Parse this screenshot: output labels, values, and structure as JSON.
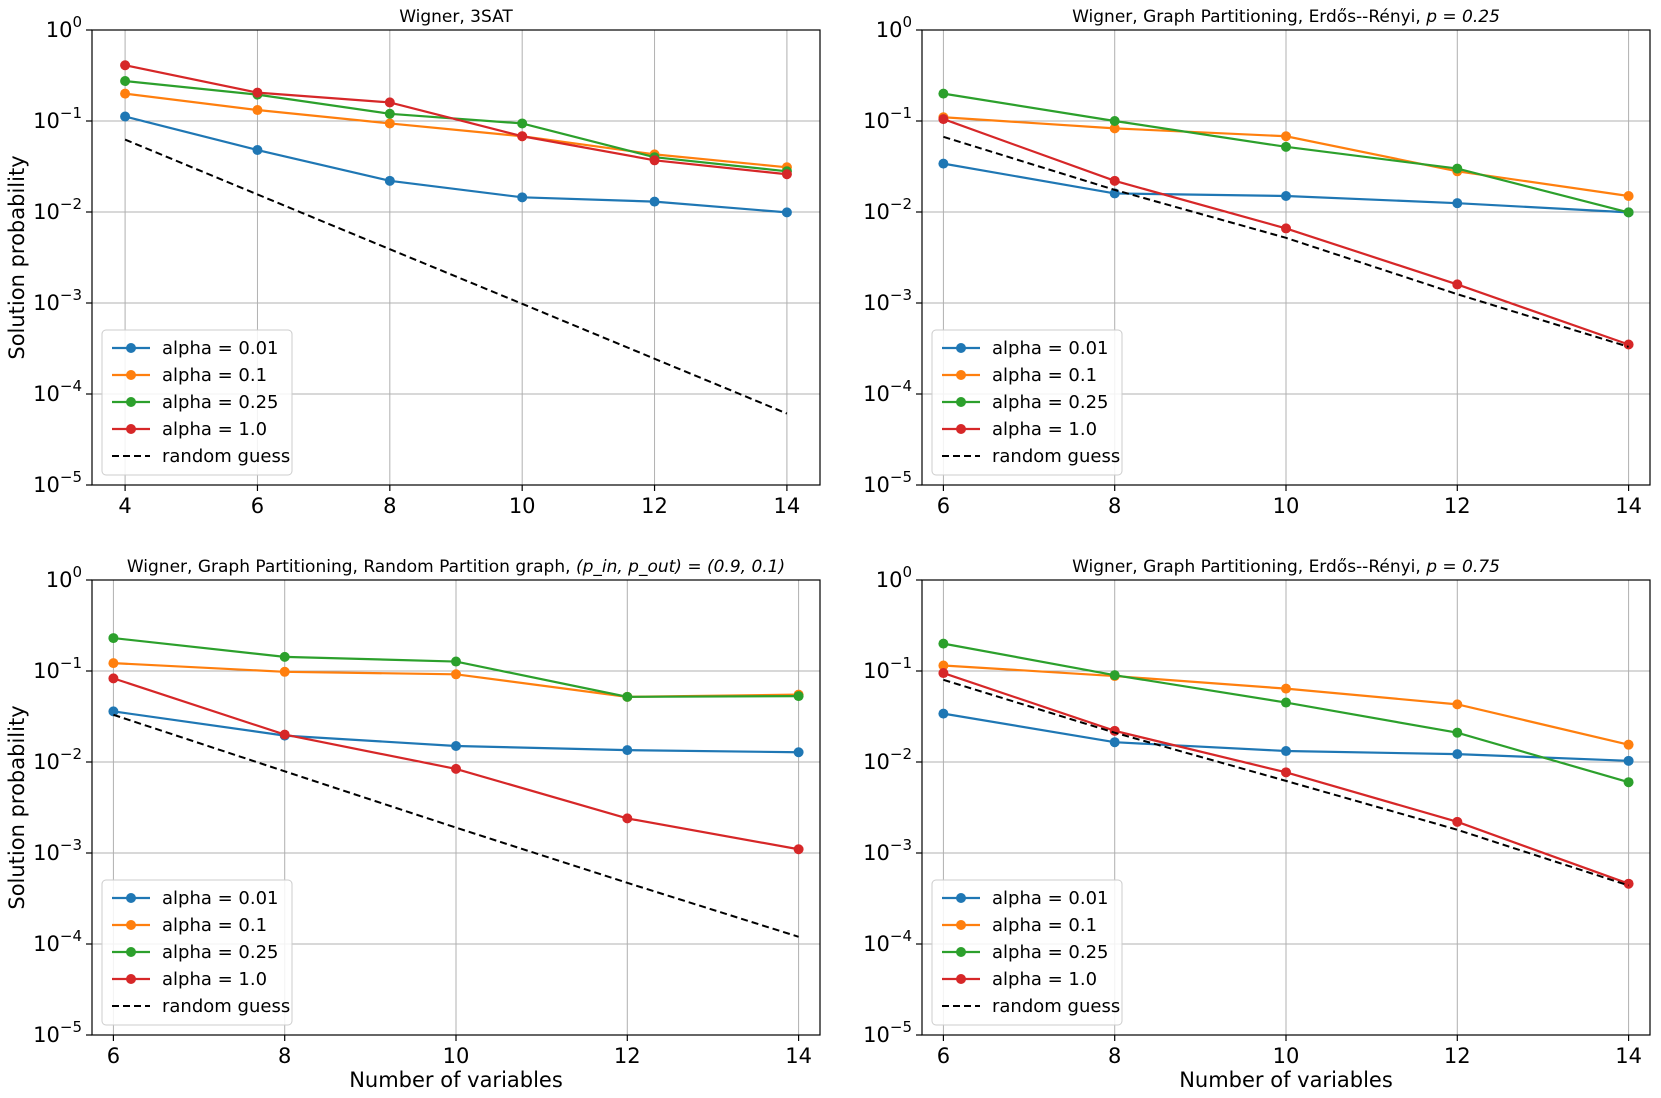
{
  "chart_data": [
    {
      "type": "line",
      "title": "Wigner, 3SAT",
      "xlabel": "",
      "ylabel": "Solution probability",
      "yscale": "log",
      "ylim": [
        1e-05,
        1
      ],
      "xlim": [
        3.5,
        14.5
      ],
      "x": [
        4,
        6,
        8,
        10,
        12,
        14
      ],
      "xticks": [
        "4",
        "6",
        "8",
        "10",
        "12",
        "14"
      ],
      "yticks": [
        "0",
        "-1",
        "-2",
        "-3",
        "-4",
        "-5"
      ],
      "legend_position": "lower-left",
      "series": [
        {
          "name": "alpha = 0.01",
          "color": "#1f77b4",
          "style": "solid-marker",
          "values": [
            0.112,
            0.048,
            0.022,
            0.0145,
            0.013,
            0.0099
          ]
        },
        {
          "name": "alpha = 0.1",
          "color": "#ff7f0e",
          "style": "solid-marker",
          "values": [
            0.2,
            0.132,
            0.094,
            0.068,
            0.043,
            0.031
          ]
        },
        {
          "name": "alpha = 0.25",
          "color": "#2ca02c",
          "style": "solid-marker",
          "values": [
            0.275,
            0.195,
            0.12,
            0.094,
            0.04,
            0.028
          ]
        },
        {
          "name": "alpha = 1.0",
          "color": "#d62728",
          "style": "solid-marker",
          "values": [
            0.41,
            0.205,
            0.16,
            0.068,
            0.037,
            0.026
          ]
        },
        {
          "name": "random guess",
          "color": "#000000",
          "style": "dashed",
          "values": [
            0.0625,
            0.0156,
            0.0039,
            0.00098,
            0.000244,
            6.1e-05
          ]
        }
      ]
    },
    {
      "type": "line",
      "title": "Wigner, Graph Partitioning, Erdős--Rényi, ",
      "title_math": "p = 0.25",
      "xlabel": "",
      "ylabel": "",
      "yscale": "log",
      "ylim": [
        1e-05,
        1
      ],
      "xlim": [
        5.75,
        14.25
      ],
      "x": [
        6,
        8,
        10,
        12,
        14
      ],
      "xticks": [
        "6",
        "8",
        "10",
        "12",
        "14"
      ],
      "yticks": [
        "0",
        "-1",
        "-2",
        "-3",
        "-4",
        "-5"
      ],
      "legend_position": "lower-left",
      "series": [
        {
          "name": "alpha = 0.01",
          "color": "#1f77b4",
          "style": "solid-marker",
          "values": [
            0.034,
            0.016,
            0.015,
            0.0125,
            0.0099
          ]
        },
        {
          "name": "alpha = 0.1",
          "color": "#ff7f0e",
          "style": "solid-marker",
          "values": [
            0.11,
            0.083,
            0.068,
            0.028,
            0.015
          ]
        },
        {
          "name": "alpha = 0.25",
          "color": "#2ca02c",
          "style": "solid-marker",
          "values": [
            0.2,
            0.1,
            0.052,
            0.03,
            0.0099
          ]
        },
        {
          "name": "alpha = 1.0",
          "color": "#d62728",
          "style": "solid-marker",
          "values": [
            0.105,
            0.022,
            0.0066,
            0.0016,
            0.00035
          ]
        },
        {
          "name": "random guess",
          "color": "#000000",
          "style": "dashed",
          "values": [
            0.067,
            0.0175,
            0.0052,
            0.00125,
            0.00033
          ]
        }
      ]
    },
    {
      "type": "line",
      "title": "Wigner, Graph Partitioning, Random Partition graph, ",
      "title_math": "(p_in, p_out) = (0.9, 0.1)",
      "xlabel": "Number of variables",
      "ylabel": "Solution probability",
      "yscale": "log",
      "ylim": [
        1e-05,
        1
      ],
      "xlim": [
        5.75,
        14.25
      ],
      "x": [
        6,
        8,
        10,
        12,
        14
      ],
      "xticks": [
        "6",
        "8",
        "10",
        "12",
        "14"
      ],
      "yticks": [
        "0",
        "-1",
        "-2",
        "-3",
        "-4",
        "-5"
      ],
      "legend_position": "lower-left",
      "series": [
        {
          "name": "alpha = 0.01",
          "color": "#1f77b4",
          "style": "solid-marker",
          "values": [
            0.036,
            0.0195,
            0.015,
            0.0135,
            0.0128
          ]
        },
        {
          "name": "alpha = 0.1",
          "color": "#ff7f0e",
          "style": "solid-marker",
          "values": [
            0.122,
            0.098,
            0.092,
            0.052,
            0.055
          ]
        },
        {
          "name": "alpha = 0.25",
          "color": "#2ca02c",
          "style": "solid-marker",
          "values": [
            0.23,
            0.143,
            0.127,
            0.052,
            0.053
          ]
        },
        {
          "name": "alpha = 1.0",
          "color": "#d62728",
          "style": "solid-marker",
          "values": [
            0.083,
            0.02,
            0.0084,
            0.0024,
            0.0011
          ]
        },
        {
          "name": "random guess",
          "color": "#000000",
          "style": "dashed",
          "values": [
            0.033,
            0.0079,
            0.0019,
            0.00047,
            0.00012
          ]
        }
      ]
    },
    {
      "type": "line",
      "title": "Wigner, Graph Partitioning, Erdős--Rényi, ",
      "title_math": "p = 0.75",
      "xlabel": "Number of variables",
      "ylabel": "",
      "yscale": "log",
      "ylim": [
        1e-05,
        1
      ],
      "xlim": [
        5.75,
        14.25
      ],
      "x": [
        6,
        8,
        10,
        12,
        14
      ],
      "xticks": [
        "6",
        "8",
        "10",
        "12",
        "14"
      ],
      "yticks": [
        "0",
        "-1",
        "-2",
        "-3",
        "-4",
        "-5"
      ],
      "legend_position": "lower-left",
      "series": [
        {
          "name": "alpha = 0.01",
          "color": "#1f77b4",
          "style": "solid-marker",
          "values": [
            0.034,
            0.0165,
            0.0132,
            0.0122,
            0.0103
          ]
        },
        {
          "name": "alpha = 0.1",
          "color": "#ff7f0e",
          "style": "solid-marker",
          "values": [
            0.115,
            0.088,
            0.064,
            0.043,
            0.0155
          ]
        },
        {
          "name": "alpha = 0.25",
          "color": "#2ca02c",
          "style": "solid-marker",
          "values": [
            0.2,
            0.09,
            0.045,
            0.021,
            0.006
          ]
        },
        {
          "name": "alpha = 1.0",
          "color": "#d62728",
          "style": "solid-marker",
          "values": [
            0.095,
            0.022,
            0.0077,
            0.0022,
            0.00046
          ]
        },
        {
          "name": "random guess",
          "color": "#000000",
          "style": "dashed",
          "values": [
            0.08,
            0.021,
            0.0062,
            0.0018,
            0.00044
          ]
        }
      ]
    }
  ]
}
